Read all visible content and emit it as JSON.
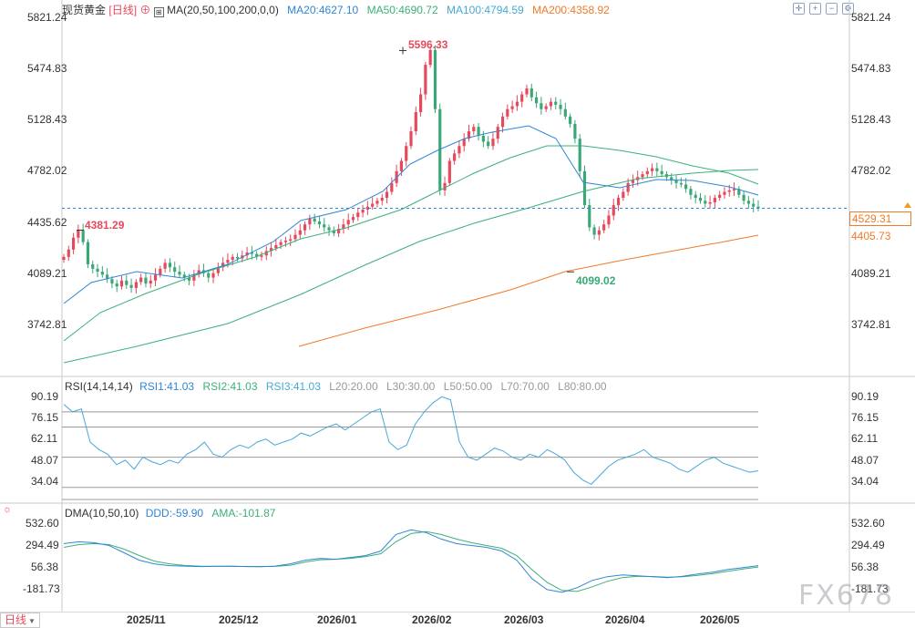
{
  "main": {
    "symbol": "现货黄金",
    "period": "[日线]",
    "ma_label": "MA(20,50,100,200,0,0)",
    "ma20": "MA20:4627.10",
    "ma50": "MA50:4690.72",
    "ma100": "MA100:4794.59",
    "ma200": "MA200:4358.92",
    "y_ticks": [
      "5821.24",
      "5474.83",
      "5128.43",
      "4782.02",
      "4435.62",
      "4089.21",
      "3742.81"
    ],
    "high_label": "5596.33",
    "left_label": "4381.29",
    "low_label": "4099.02",
    "current_price": "4529.31",
    "ma200_price": "4405.73",
    "colors": {
      "up": "#e8485b",
      "down": "#3aa876",
      "ma20": "#2f86d6",
      "ma50": "#3bb07a",
      "ma100": "#48a8d8",
      "ma200": "#f07a28",
      "accent": "#e8485b"
    }
  },
  "rsi": {
    "label": "RSI(14,14,14)",
    "rsi1": "RSI1:41.03",
    "rsi2": "RSI2:41.03",
    "rsi3": "RSI3:41.03",
    "l20": "L20:20.00",
    "l30": "L30:30.00",
    "l50": "L50:50.00",
    "l70": "L70:70.00",
    "l80": "L80:80.00",
    "y_ticks": [
      "90.19",
      "76.15",
      "62.11",
      "48.07",
      "34.04"
    ]
  },
  "dma": {
    "label": "DMA(10,50,10)",
    "ddd": "DDD:-59.90",
    "ama": "AMA:-101.87",
    "y_ticks": [
      "532.60",
      "294.49",
      "56.38",
      "-181.73"
    ]
  },
  "x_axis": {
    "period_button": "日线",
    "ticks": [
      "2025/11",
      "2025/12",
      "2026/01",
      "2026/02",
      "2026/03",
      "2026/04",
      "2026/05"
    ]
  },
  "watermark": "FX678",
  "toolbar_icons": [
    "crosshair-icon",
    "zoom-in-icon",
    "zoom-out-icon",
    "settings-icon"
  ],
  "chart_data": {
    "type": "candlestick",
    "title": "现货黄金 [日线]",
    "series": [
      {
        "name": "MA20",
        "last": 4627.1
      },
      {
        "name": "MA50",
        "last": 4690.72
      },
      {
        "name": "MA100",
        "last": 4794.59
      },
      {
        "name": "MA200",
        "last": 4358.92
      }
    ],
    "annotations": {
      "high": 5596.33,
      "early_high": 4381.29,
      "low": 4099.02,
      "current": 4529.31,
      "ma200_current": 4405.73
    },
    "ylim": [
      3650,
      5880
    ],
    "x_categories": [
      "2025/11",
      "2025/12",
      "2026/01",
      "2026/02",
      "2026/03",
      "2026/04",
      "2026/05"
    ],
    "rsi": {
      "value": 41.03,
      "levels": [
        20,
        30,
        50,
        70,
        80
      ],
      "ylim": [
        25,
        95
      ]
    },
    "dma": {
      "ddd": -59.9,
      "ama": -101.87,
      "ylim": [
        -260,
        580
      ]
    }
  }
}
